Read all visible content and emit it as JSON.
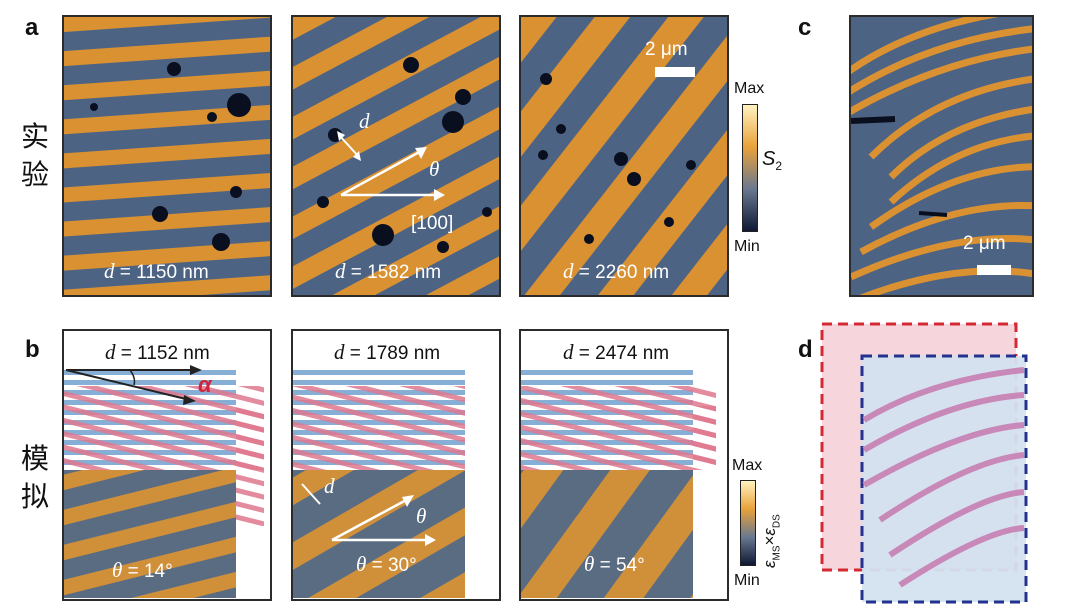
{
  "panel_labels": {
    "a": "a",
    "b": "b",
    "c": "c",
    "d": "d"
  },
  "row_labels": {
    "experiment": "实验",
    "simulation": "模拟"
  },
  "experiment": {
    "panels": [
      {
        "d_symbol": "d",
        "d_value": "= 1150 nm"
      },
      {
        "d_symbol": "d",
        "d_value": "= 1582 nm"
      },
      {
        "d_symbol": "d",
        "d_value": "= 2260 nm"
      }
    ],
    "scale_bar": "2 μm",
    "arrow_d": "d",
    "arrow_theta": "θ",
    "direction_label": "[100]",
    "colorbar": {
      "max": "Max",
      "min": "Min",
      "var": "S",
      "sub": "2"
    }
  },
  "simulation": {
    "panels": [
      {
        "d_symbol": "d",
        "d_value": "= 1152 nm",
        "theta_symbol": "θ",
        "theta_value": "= 14°"
      },
      {
        "d_symbol": "d",
        "d_value": "= 1789 nm",
        "theta_symbol": "θ",
        "theta_value": "= 30°"
      },
      {
        "d_symbol": "d",
        "d_value": "= 2474 nm",
        "theta_symbol": "θ",
        "theta_value": "= 54°"
      }
    ],
    "alpha": "α",
    "arrow_d": "d",
    "arrow_theta": "θ",
    "colorbar": {
      "max": "Max",
      "min": "Min",
      "e1": "ε",
      "s1": "MS",
      "times": "×",
      "e2": "ε",
      "s2": "DS"
    }
  },
  "panel_c": {
    "scale_bar": "2 μm"
  },
  "colors": {
    "orange": "#d99132",
    "blue_gray": "#4d6384",
    "navy": "#1b2540",
    "stripe_blue": "#87aed4",
    "stripe_red": "#e0788e",
    "dash_red": "#d42a34",
    "dash_blue": "#23318f"
  }
}
